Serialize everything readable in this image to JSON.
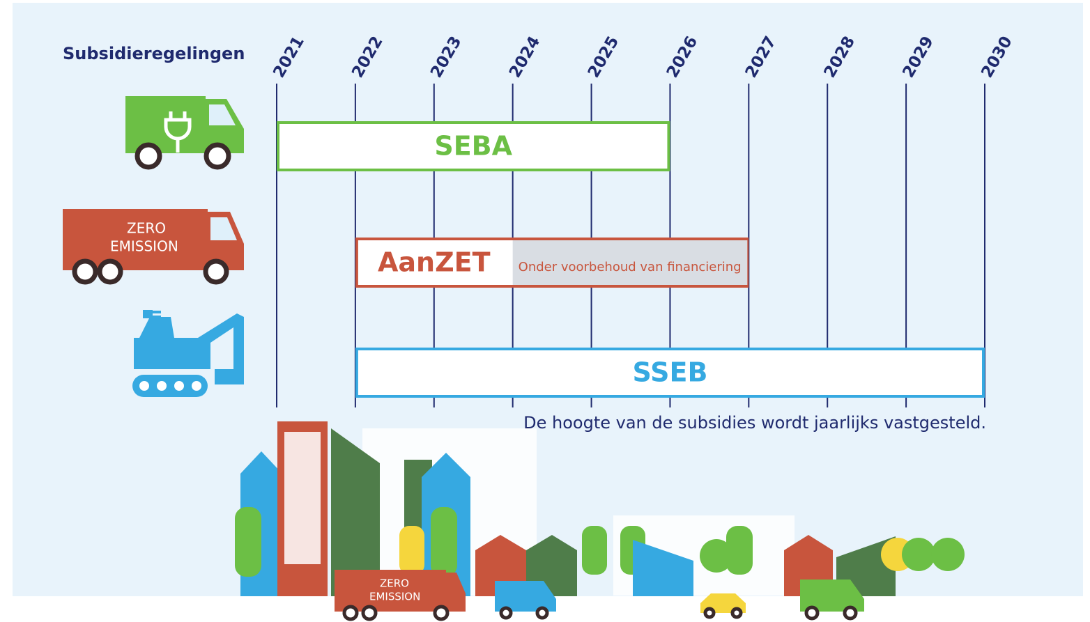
{
  "chart_data": {
    "type": "gantt",
    "title": "Subsidieregelingen",
    "xlim": [
      2021,
      2030
    ],
    "xticks": [
      2021,
      2022,
      2023,
      2024,
      2025,
      2026,
      2027,
      2028,
      2029,
      2030
    ],
    "bars": [
      {
        "name": "SEBA",
        "start": 2021,
        "end": 2026,
        "color": "#6cbf45"
      },
      {
        "name": "AanZET",
        "start": 2022,
        "end": 2027,
        "color": "#c8553d",
        "note": {
          "text": "Onder voorbehoud van financiering",
          "start": 2024
        }
      },
      {
        "name": "SSEB",
        "start": 2022,
        "end": 2030,
        "color": "#36a9e1"
      }
    ],
    "footnote": "De hoogte van de subsidies wordt jaarlijks vastgesteld.",
    "icon_label": [
      "ZERO",
      "EMISSION"
    ]
  }
}
